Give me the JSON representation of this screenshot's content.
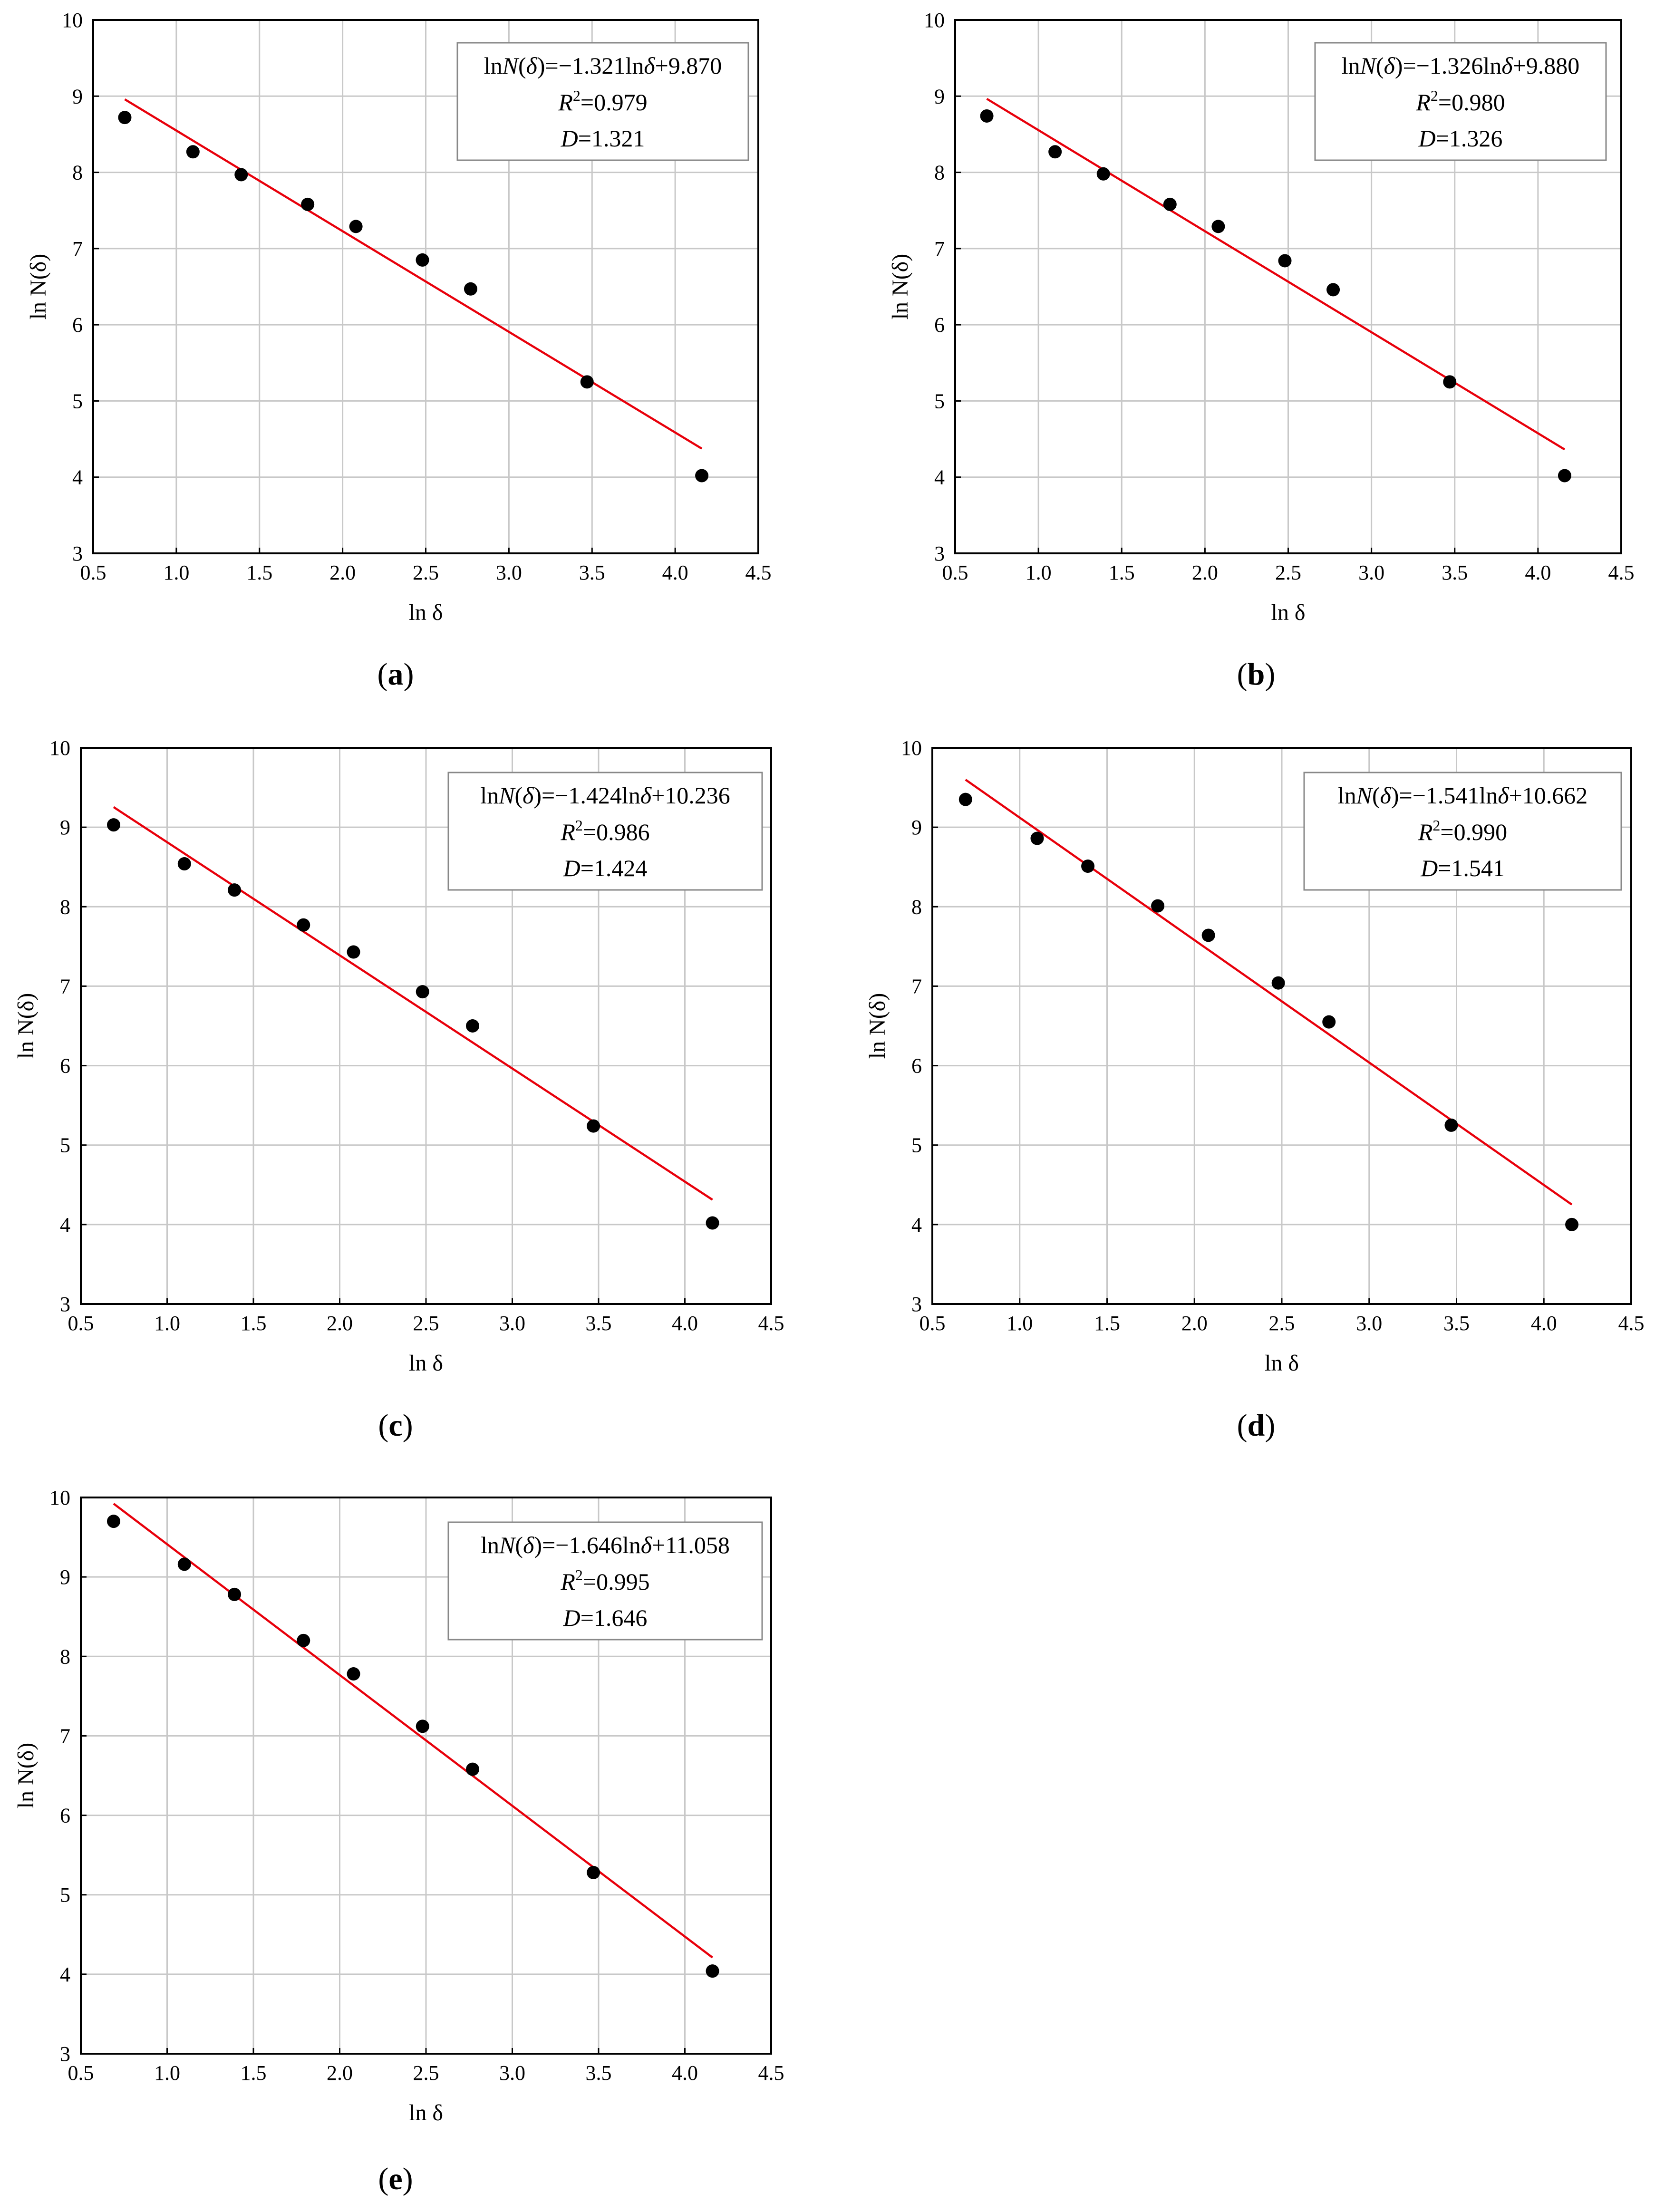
{
  "figure": {
    "panel_labels": [
      "a",
      "b",
      "c",
      "d",
      "e"
    ],
    "colors": {
      "fit": "#e8000b",
      "points": "#000000",
      "grid": "#c8c8c8",
      "axis": "#000000"
    }
  },
  "chart_data": [
    {
      "id": "a",
      "type": "scatter",
      "label": "a",
      "xlabel": "ln δ",
      "ylabel": "ln N(δ)",
      "xlim": [
        0.5,
        4.5
      ],
      "ylim": [
        3,
        10
      ],
      "xticks": [
        "0.5",
        "1.0",
        "1.5",
        "2.0",
        "2.5",
        "3.0",
        "3.5",
        "4.0",
        "4.5"
      ],
      "yticks": [
        "3",
        "4",
        "5",
        "6",
        "7",
        "8",
        "9",
        "10"
      ],
      "x": [
        0.69,
        1.1,
        1.39,
        1.79,
        2.08,
        2.48,
        2.77,
        3.47,
        4.16
      ],
      "y": [
        8.72,
        8.27,
        7.97,
        7.58,
        7.29,
        6.85,
        6.47,
        5.25,
        4.02
      ],
      "fit": {
        "slope": -1.321,
        "intercept": 9.87,
        "x_range": [
          0.69,
          4.16
        ]
      },
      "legend": {
        "lhs": "ln",
        "N": "N",
        "lparen": "(",
        "delta": "δ",
        "eq": ")=−1.321ln",
        "delta2": "δ",
        "tail": "+9.870",
        "R": "R",
        "sup": "2",
        "r2val": "=0.979",
        "D": "D",
        "dval": "=1.321"
      }
    },
    {
      "id": "b",
      "type": "scatter",
      "label": "b",
      "xlabel": "ln δ",
      "ylabel": "ln N(δ)",
      "xlim": [
        0.5,
        4.5
      ],
      "ylim": [
        3,
        10
      ],
      "xticks": [
        "0.5",
        "1.0",
        "1.5",
        "2.0",
        "2.5",
        "3.0",
        "3.5",
        "4.0",
        "4.5"
      ],
      "yticks": [
        "3",
        "4",
        "5",
        "6",
        "7",
        "8",
        "9",
        "10"
      ],
      "x": [
        0.69,
        1.1,
        1.39,
        1.79,
        2.08,
        2.48,
        2.77,
        3.47,
        4.16
      ],
      "y": [
        8.74,
        8.27,
        7.98,
        7.58,
        7.29,
        6.84,
        6.46,
        5.25,
        4.02
      ],
      "fit": {
        "slope": -1.326,
        "intercept": 9.88,
        "x_range": [
          0.69,
          4.16
        ]
      },
      "legend": {
        "lhs": "ln",
        "N": "N",
        "lparen": "(",
        "delta": "δ",
        "eq": ")=−1.326ln",
        "delta2": "δ",
        "tail": "+9.880",
        "R": "R",
        "sup": "2",
        "r2val": "=0.980",
        "D": "D",
        "dval": "=1.326"
      }
    },
    {
      "id": "c",
      "type": "scatter",
      "label": "c",
      "xlabel": "ln δ",
      "ylabel": "ln N(δ)",
      "xlim": [
        0.5,
        4.5
      ],
      "ylim": [
        3,
        10
      ],
      "xticks": [
        "0.5",
        "1.0",
        "1.5",
        "2.0",
        "2.5",
        "3.0",
        "3.5",
        "4.0",
        "4.5"
      ],
      "yticks": [
        "3",
        "4",
        "5",
        "6",
        "7",
        "8",
        "9",
        "10"
      ],
      "x": [
        0.69,
        1.1,
        1.39,
        1.79,
        2.08,
        2.48,
        2.77,
        3.47,
        4.16
      ],
      "y": [
        9.03,
        8.54,
        8.21,
        7.77,
        7.43,
        6.93,
        6.5,
        5.24,
        4.02
      ],
      "fit": {
        "slope": -1.424,
        "intercept": 10.236,
        "x_range": [
          0.69,
          4.16
        ]
      },
      "legend": {
        "lhs": "ln",
        "N": "N",
        "lparen": "(",
        "delta": "δ",
        "eq": ")=−1.424ln",
        "delta2": "δ",
        "tail": "+10.236",
        "R": "R",
        "sup": "2",
        "r2val": "=0.986",
        "D": "D",
        "dval": "=1.424"
      }
    },
    {
      "id": "d",
      "type": "scatter",
      "label": "d",
      "xlabel": "ln δ",
      "ylabel": "ln N(δ)",
      "xlim": [
        0.5,
        4.5
      ],
      "ylim": [
        3,
        10
      ],
      "xticks": [
        "0.5",
        "1.0",
        "1.5",
        "2.0",
        "2.5",
        "3.0",
        "3.5",
        "4.0",
        "4.5"
      ],
      "yticks": [
        "3",
        "4",
        "5",
        "6",
        "7",
        "8",
        "9",
        "10"
      ],
      "x": [
        0.69,
        1.1,
        1.39,
        1.79,
        2.08,
        2.48,
        2.77,
        3.47,
        4.16
      ],
      "y": [
        9.35,
        8.86,
        8.51,
        8.01,
        7.64,
        7.04,
        6.55,
        5.25,
        4.0
      ],
      "fit": {
        "slope": -1.541,
        "intercept": 10.662,
        "x_range": [
          0.69,
          4.16
        ]
      },
      "legend": {
        "lhs": "ln",
        "N": "N",
        "lparen": "(",
        "delta": "δ",
        "eq": ")=−1.541ln",
        "delta2": "δ",
        "tail": "+10.662",
        "R": "R",
        "sup": "2",
        "r2val": "=0.990",
        "D": "D",
        "dval": "=1.541"
      }
    },
    {
      "id": "e",
      "type": "scatter",
      "label": "e",
      "xlabel": "ln δ",
      "ylabel": "ln N(δ)",
      "xlim": [
        0.5,
        4.5
      ],
      "ylim": [
        3,
        10
      ],
      "xticks": [
        "0.5",
        "1.0",
        "1.5",
        "2.0",
        "2.5",
        "3.0",
        "3.5",
        "4.0",
        "4.5"
      ],
      "yticks": [
        "3",
        "4",
        "5",
        "6",
        "7",
        "8",
        "9",
        "10"
      ],
      "x": [
        0.69,
        1.1,
        1.39,
        1.79,
        2.08,
        2.48,
        2.77,
        3.47,
        4.16
      ],
      "y": [
        9.7,
        9.16,
        8.78,
        8.2,
        7.78,
        7.12,
        6.58,
        5.28,
        4.04
      ],
      "fit": {
        "slope": -1.646,
        "intercept": 11.058,
        "x_range": [
          0.69,
          4.16
        ]
      },
      "legend": {
        "lhs": "ln",
        "N": "N",
        "lparen": "(",
        "delta": "δ",
        "eq": ")=−1.646ln",
        "delta2": "δ",
        "tail": "+11.058",
        "R": "R",
        "sup": "2",
        "r2val": "=0.995",
        "D": "D",
        "dval": "=1.646"
      }
    }
  ]
}
